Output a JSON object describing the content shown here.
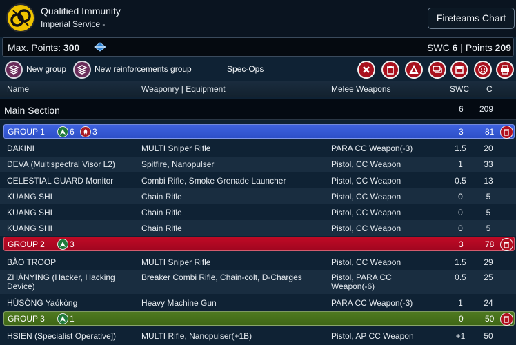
{
  "header": {
    "title": "Qualified Immunity",
    "subtitle": "Imperial Service -",
    "fireteams_button": "Fireteams Chart"
  },
  "points": {
    "max_label": "Max. Points:",
    "max_value": "300",
    "swc_label": "SWC",
    "swc_value": "6",
    "separator": "|",
    "points_label": "Points",
    "points_value": "209"
  },
  "toolbar": {
    "new_group": "New group",
    "new_reinforcements": "New reinforcements group",
    "spec_ops": "Spec-Ops"
  },
  "columns": {
    "name": "Name",
    "weaponry": "Weaponry | Equipment",
    "melee": "Melee Weapons",
    "swc": "SWC",
    "c": "C"
  },
  "section": {
    "name": "Main Section",
    "swc": "6",
    "c": "209"
  },
  "groups": [
    {
      "name": "GROUP 1",
      "regular": "6",
      "impetuous": "3",
      "swc": "3",
      "c": "81"
    },
    {
      "name": "GROUP 2",
      "regular": "3",
      "swc": "3",
      "c": "78"
    },
    {
      "name": "GROUP 3",
      "regular": "1",
      "swc": "0",
      "c": "50"
    }
  ],
  "rows": [
    {
      "name": "DAKINI",
      "weapons": "MULTI Sniper Rifle",
      "melee": "PARA CC Weapon(-3)",
      "swc": "1.5",
      "c": "20"
    },
    {
      "name": "DEVA (Multispectral Visor L2)",
      "weapons": "Spitfire, Nanopulser",
      "melee": "Pistol, CC Weapon",
      "swc": "1",
      "c": "33"
    },
    {
      "name": "CELESTIAL GUARD Monitor",
      "weapons": "Combi Rifle, Smoke Grenade Launcher",
      "melee": "Pistol, CC Weapon",
      "swc": "0.5",
      "c": "13"
    },
    {
      "name": "KUANG SHI",
      "weapons": "Chain Rifle",
      "melee": "Pistol, CC Weapon",
      "swc": "0",
      "c": "5"
    },
    {
      "name": "KUANG SHI",
      "weapons": "Chain Rifle",
      "melee": "Pistol, CC Weapon",
      "swc": "0",
      "c": "5"
    },
    {
      "name": "KUANG SHI",
      "weapons": "Chain Rifle",
      "melee": "Pistol, CC Weapon",
      "swc": "0",
      "c": "5"
    },
    {
      "name": "BÀO TROOP",
      "weapons": "MULTI Sniper Rifle",
      "melee": "Pistol, CC Weapon",
      "swc": "1.5",
      "c": "29"
    },
    {
      "name": "ZHÀNYING (Hacker, Hacking Device)",
      "weapons": "Breaker Combi Rifle, Chain-colt, D-Charges",
      "melee": "Pistol, PARA CC Weapon(-6)",
      "swc": "0.5",
      "c": "25"
    },
    {
      "name": "HÙSÒNG Yaókòng",
      "weapons": "Heavy Machine Gun",
      "melee": "PARA CC Weapon(-3)",
      "swc": "1",
      "c": "24"
    },
    {
      "name": "HSIEN (Specialist Operative])",
      "weapons": "MULTI Rifle, Nanopulser(+1B)",
      "melee": "Pistol, AP CC Weapon",
      "swc": "+1",
      "c": "50"
    }
  ]
}
